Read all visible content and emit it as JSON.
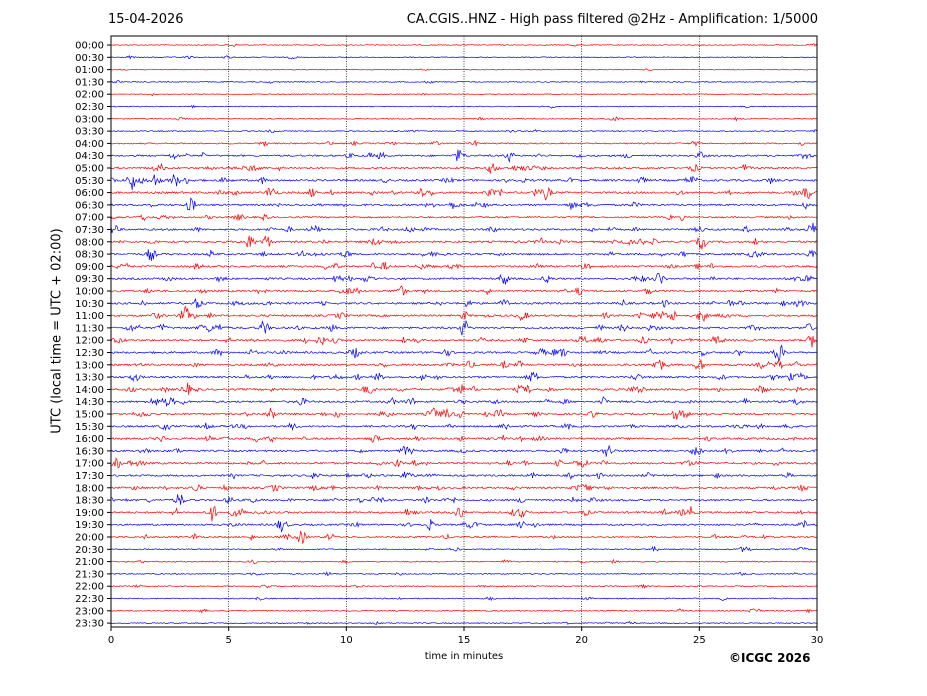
{
  "header": {
    "date": "15-04-2026",
    "title": "CA.CGIS..HNZ - High pass filtered @2Hz - Amplification: 1/5000"
  },
  "footer": {
    "credit": "©ICGC 2026"
  },
  "colors": {
    "red_trace": "#ff0000",
    "blue_trace": "#0000ff",
    "grid": "#000000",
    "background": "#ffffff"
  },
  "chart_data": {
    "type": "line",
    "title": "CA.CGIS..HNZ - High pass filtered @2Hz - Amplification: 1/5000",
    "xlabel": "time in minutes",
    "ylabel": "UTC (local time = UTC + 02:00)",
    "xlim": [
      0,
      30
    ],
    "xticks": [
      0,
      5,
      10,
      15,
      20,
      25,
      30
    ],
    "grid": "vertical dotted lines at each x tick",
    "rows": [
      "00:00",
      "00:30",
      "01:00",
      "01:30",
      "02:00",
      "02:30",
      "03:00",
      "03:30",
      "04:00",
      "04:30",
      "05:00",
      "05:30",
      "06:00",
      "06:30",
      "07:00",
      "07:30",
      "08:00",
      "08:30",
      "09:00",
      "09:30",
      "10:00",
      "10:30",
      "11:00",
      "11:30",
      "12:00",
      "12:30",
      "13:00",
      "13:30",
      "14:00",
      "14:30",
      "15:00",
      "15:30",
      "16:00",
      "16:30",
      "17:00",
      "17:30",
      "18:00",
      "18:30",
      "19:00",
      "19:30",
      "20:00",
      "20:30",
      "21:00",
      "21:30",
      "22:00",
      "22:30",
      "23:00",
      "23:30"
    ],
    "row_colors": [
      "red",
      "blue"
    ],
    "activity": [
      0.15,
      0.2,
      0.15,
      0.2,
      0.12,
      0.15,
      0.2,
      0.25,
      0.5,
      0.8,
      0.9,
      1.0,
      1.0,
      0.9,
      0.7,
      0.9,
      1.0,
      0.9,
      0.9,
      0.9,
      0.95,
      0.95,
      1.0,
      1.0,
      1.0,
      0.95,
      0.95,
      0.95,
      1.0,
      0.95,
      0.95,
      0.9,
      0.95,
      0.9,
      0.95,
      0.9,
      0.95,
      0.95,
      0.9,
      0.8,
      0.6,
      0.4,
      0.35,
      0.3,
      0.35,
      0.3,
      0.3,
      0.25
    ],
    "events": [
      {
        "row": "04:30",
        "t": 14.8
      },
      {
        "row": "05:00",
        "t": 16.2
      },
      {
        "row": "05:30",
        "t": 0.9
      },
      {
        "row": "05:30",
        "t": 2.7
      },
      {
        "row": "06:00",
        "t": 18.5
      },
      {
        "row": "06:00",
        "t": 29.6
      },
      {
        "row": "06:30",
        "t": 3.4
      },
      {
        "row": "07:30",
        "t": 29.8
      },
      {
        "row": "08:00",
        "t": 6.6
      },
      {
        "row": "08:00",
        "t": 25.1
      },
      {
        "row": "08:30",
        "t": 1.7
      },
      {
        "row": "09:30",
        "t": 16.7
      },
      {
        "row": "09:30",
        "t": 23.3
      },
      {
        "row": "11:00",
        "t": 3.2
      },
      {
        "row": "11:00",
        "t": 25.1
      },
      {
        "row": "11:30",
        "t": 6.5
      },
      {
        "row": "11:30",
        "t": 15.0
      },
      {
        "row": "12:00",
        "t": 29.8
      },
      {
        "row": "12:30",
        "t": 28.4
      },
      {
        "row": "13:00",
        "t": 23.3
      },
      {
        "row": "13:00",
        "t": 25.0
      },
      {
        "row": "14:00",
        "t": 3.2
      },
      {
        "row": "14:00",
        "t": 14.8
      },
      {
        "row": "15:00",
        "t": 6.8
      },
      {
        "row": "15:00",
        "t": 14.2
      },
      {
        "row": "16:30",
        "t": 21.1
      },
      {
        "row": "17:00",
        "t": 0.2
      },
      {
        "row": "18:30",
        "t": 2.9
      },
      {
        "row": "19:00",
        "t": 4.3
      },
      {
        "row": "19:00",
        "t": 14.8
      },
      {
        "row": "19:30",
        "t": 7.3
      },
      {
        "row": "20:00",
        "t": 8.1
      }
    ]
  }
}
